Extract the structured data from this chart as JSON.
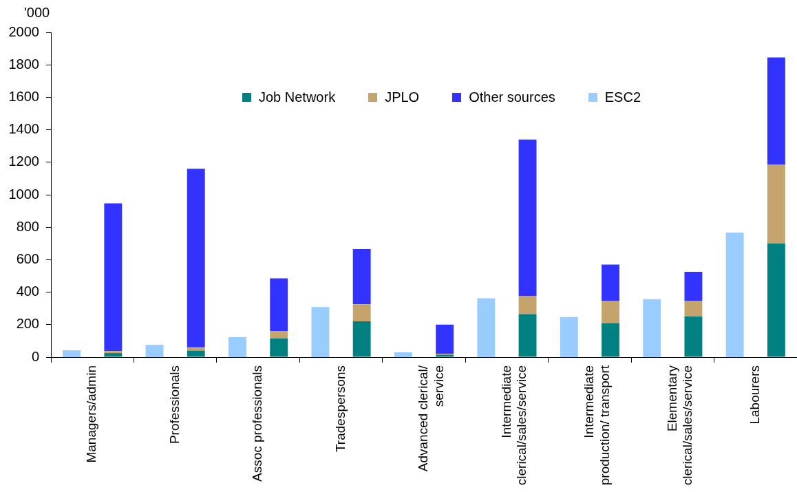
{
  "chart_data": [
    {
      "type": "bar",
      "ylabel": "'000",
      "categories": [
        "Managers/admin",
        "Professionals",
        "Assoc professionals",
        "Tradespersons",
        "Advanced clerical/ service",
        "Intermediate clerical/sales/service",
        "Intermediate production/ transport",
        "Elementary clerical/sales/service",
        "Labourers"
      ],
      "series": [
        {
          "name": "Job Network",
          "color": "#008080",
          "values": [
            25,
            40,
            115,
            220,
            15,
            265,
            210,
            250,
            700
          ]
        },
        {
          "name": "JPLO",
          "color": "#c4a46c",
          "values": [
            12,
            20,
            45,
            105,
            5,
            110,
            135,
            95,
            485
          ]
        },
        {
          "name": "Other sources",
          "color": "#3333ff",
          "values": [
            910,
            1100,
            325,
            340,
            180,
            965,
            225,
            180,
            660
          ]
        }
      ],
      "stacked": true,
      "ylim": [
        0,
        2000
      ],
      "yticks": [
        0,
        200,
        400,
        600,
        800,
        1000,
        1200,
        1400,
        1600,
        1800,
        2000
      ],
      "grid": false,
      "legend": "top"
    },
    {
      "type": "bar",
      "categories": [
        null,
        null,
        null,
        null,
        null,
        null,
        null,
        null,
        null
      ],
      "series": [
        {
          "name": "ESC2",
          "color": "#99ccff",
          "values": [
            42,
            76,
            123,
            308,
            30,
            362,
            247,
            357,
            767
          ]
        }
      ],
      "ylim": [
        0,
        2000
      ],
      "tick_labels": false,
      "legend": "top"
    }
  ]
}
